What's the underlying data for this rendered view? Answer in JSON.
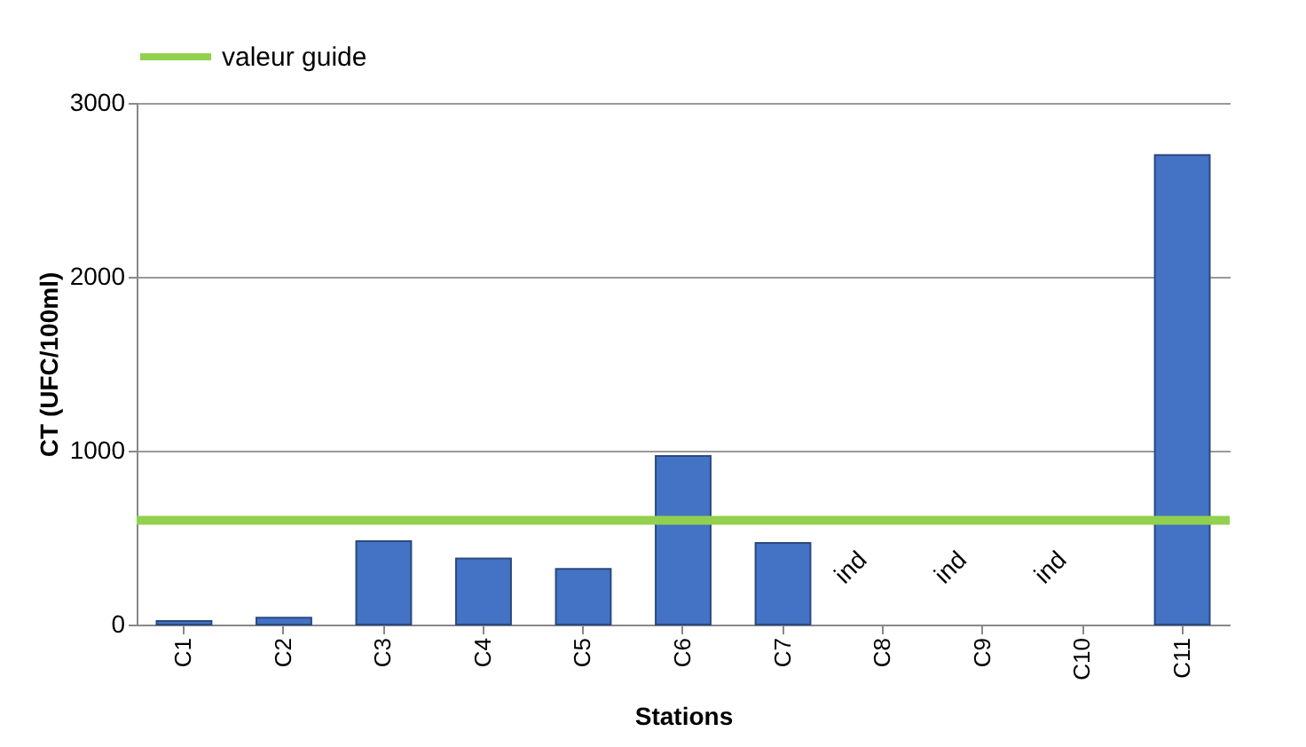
{
  "chart_data": {
    "type": "bar",
    "xlabel": "Stations",
    "ylabel": "CT (UFC/100ml)",
    "categories": [
      "C1",
      "C2",
      "C3",
      "C4",
      "C5",
      "C6",
      "C7",
      "C8",
      "C9",
      "C10",
      "C11"
    ],
    "values": [
      20,
      40,
      480,
      380,
      320,
      970,
      470,
      null,
      null,
      null,
      2700
    ],
    "color": "#4472c4",
    "ylim": [
      0,
      3000
    ],
    "yticks": [
      0,
      1000,
      2000,
      3000
    ],
    "grid": "y",
    "legend": "top",
    "ref_lines": [
      {
        "axis": "y",
        "value": 600,
        "label": "valeur guide",
        "color": "#92d050"
      }
    ],
    "annotations": [
      "ind",
      "ind",
      "ind"
    ]
  }
}
